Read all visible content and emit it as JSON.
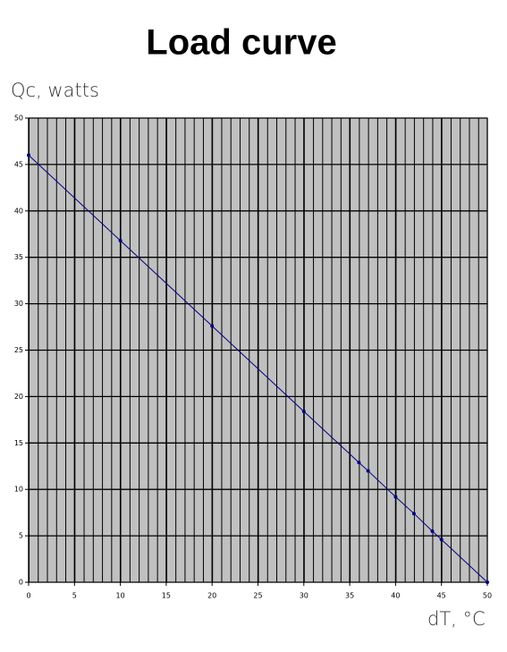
{
  "chart_data": {
    "type": "line",
    "title": "Load curve",
    "y_label": "Qc, watts",
    "x_label": "dT, °C",
    "x": [
      0,
      10,
      20,
      30,
      36,
      37,
      40,
      42,
      44,
      45,
      50
    ],
    "series": [
      {
        "color": "#000080",
        "values": [
          46,
          36.8,
          27.6,
          18.4,
          12.9,
          12,
          9.2,
          7.4,
          5.5,
          4.6,
          0
        ]
      }
    ],
    "xlim": [
      0,
      50
    ],
    "ylim": [
      0,
      50
    ],
    "xticks": [
      0,
      5,
      10,
      15,
      20,
      25,
      30,
      35,
      40,
      45,
      50
    ],
    "yticks": [
      0,
      5,
      10,
      15,
      20,
      25,
      30,
      35,
      40,
      45,
      50
    ],
    "grid": true,
    "minor_grid": true,
    "background": "#c0c0c0"
  }
}
